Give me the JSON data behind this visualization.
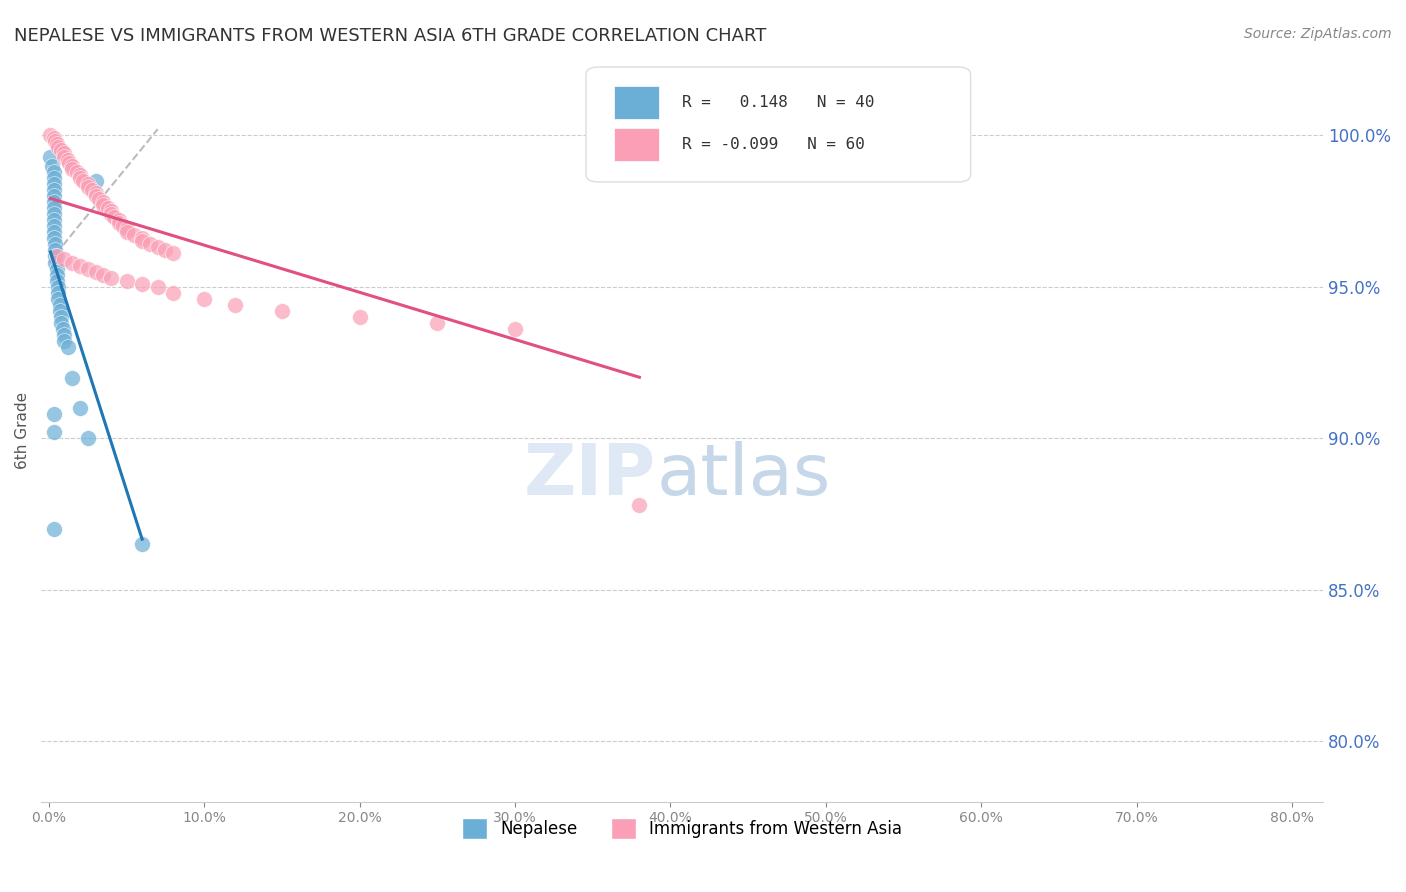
{
  "title": "NEPALESE VS IMMIGRANTS FROM WESTERN ASIA 6TH GRADE CORRELATION CHART",
  "source": "Source: ZipAtlas.com",
  "ylabel": "6th Grade",
  "yaxis_labels": [
    "100.0%",
    "95.0%",
    "90.0%",
    "85.0%",
    "80.0%"
  ],
  "yaxis_values": [
    1.0,
    0.95,
    0.9,
    0.85,
    0.8
  ],
  "xlim": [
    -0.005,
    0.82
  ],
  "ylim": [
    0.78,
    1.025
  ],
  "blue_color": "#6baed6",
  "pink_color": "#fa9fb5",
  "line_blue": "#1f77b4",
  "line_pink": "#e05080",
  "dash_color": "#aaaaaa",
  "title_color": "#333333",
  "right_axis_color": "#4472c4",
  "blue_scatter_x": [
    0.001,
    0.002,
    0.003,
    0.003,
    0.003,
    0.003,
    0.003,
    0.003,
    0.003,
    0.003,
    0.003,
    0.003,
    0.003,
    0.003,
    0.004,
    0.004,
    0.004,
    0.004,
    0.005,
    0.005,
    0.005,
    0.006,
    0.006,
    0.006,
    0.007,
    0.007,
    0.008,
    0.008,
    0.009,
    0.01,
    0.01,
    0.012,
    0.015,
    0.02,
    0.025,
    0.03,
    0.003,
    0.003,
    0.003,
    0.06
  ],
  "blue_scatter_y": [
    0.993,
    0.99,
    0.988,
    0.986,
    0.984,
    0.982,
    0.98,
    0.978,
    0.976,
    0.974,
    0.972,
    0.97,
    0.968,
    0.966,
    0.964,
    0.962,
    0.96,
    0.958,
    0.956,
    0.954,
    0.952,
    0.95,
    0.948,
    0.946,
    0.944,
    0.942,
    0.94,
    0.938,
    0.936,
    0.934,
    0.932,
    0.93,
    0.92,
    0.91,
    0.9,
    0.985,
    0.908,
    0.902,
    0.87,
    0.865
  ],
  "pink_scatter_x": [
    0.001,
    0.003,
    0.004,
    0.005,
    0.006,
    0.008,
    0.01,
    0.01,
    0.012,
    0.013,
    0.015,
    0.015,
    0.018,
    0.02,
    0.02,
    0.022,
    0.025,
    0.025,
    0.028,
    0.03,
    0.03,
    0.032,
    0.035,
    0.035,
    0.038,
    0.04,
    0.04,
    0.042,
    0.045,
    0.045,
    0.048,
    0.05,
    0.05,
    0.055,
    0.06,
    0.06,
    0.065,
    0.07,
    0.075,
    0.08,
    0.005,
    0.01,
    0.015,
    0.02,
    0.025,
    0.03,
    0.035,
    0.04,
    0.05,
    0.06,
    0.07,
    0.08,
    0.1,
    0.12,
    0.15,
    0.2,
    0.25,
    0.3,
    0.38,
    0.38
  ],
  "pink_scatter_y": [
    1.0,
    0.999,
    0.998,
    0.997,
    0.996,
    0.995,
    0.994,
    0.993,
    0.992,
    0.991,
    0.99,
    0.989,
    0.988,
    0.987,
    0.986,
    0.985,
    0.984,
    0.983,
    0.982,
    0.981,
    0.98,
    0.979,
    0.978,
    0.977,
    0.976,
    0.975,
    0.974,
    0.973,
    0.972,
    0.971,
    0.97,
    0.969,
    0.968,
    0.967,
    0.966,
    0.965,
    0.964,
    0.963,
    0.962,
    0.961,
    0.96,
    0.959,
    0.958,
    0.957,
    0.956,
    0.955,
    0.954,
    0.953,
    0.952,
    0.951,
    0.95,
    0.948,
    0.946,
    0.944,
    0.942,
    0.94,
    0.938,
    0.936,
    0.878,
    1.0
  ]
}
